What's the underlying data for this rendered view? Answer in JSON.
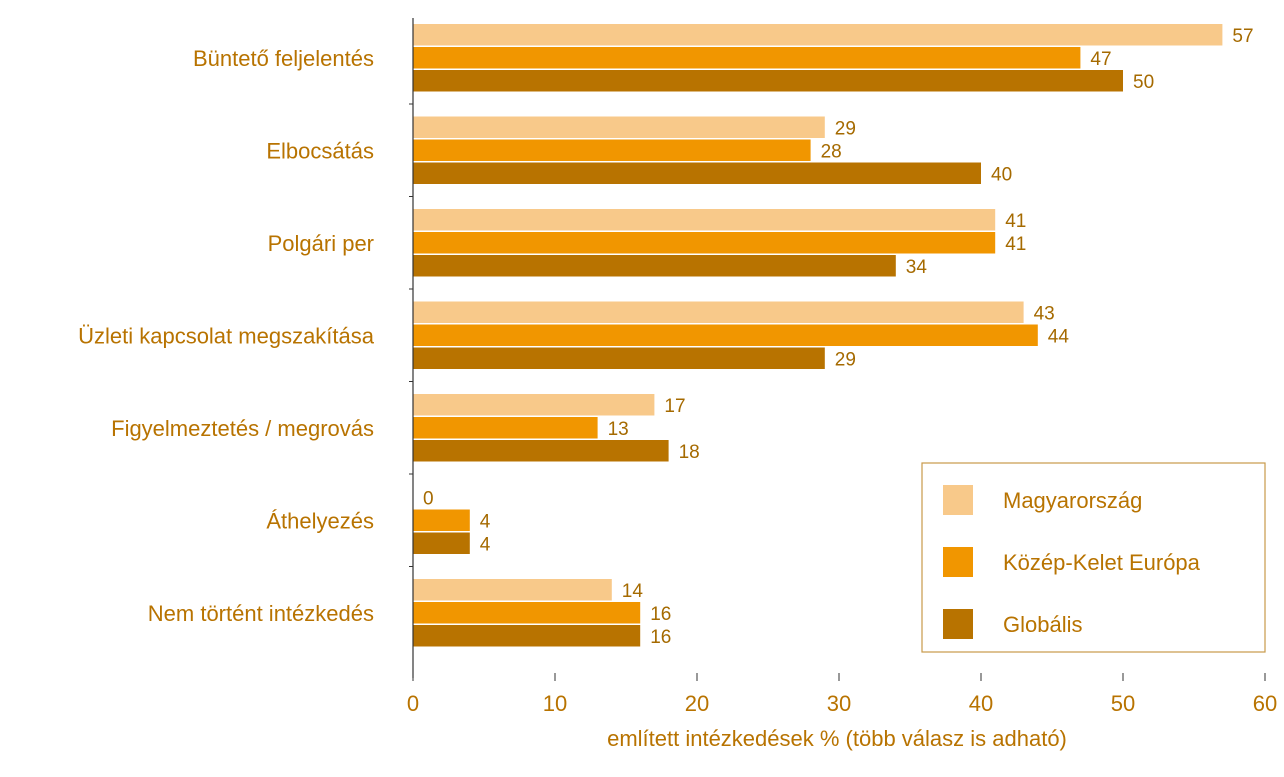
{
  "chart_data": {
    "type": "bar",
    "orientation": "horizontal",
    "categories": [
      "Büntető feljelentés",
      "Elbocsátás",
      "Polgári per",
      "Üzleti kapcsolat megszakítása",
      "Figyelmeztetés / megrovás",
      "Áthelyezés",
      "Nem történt intézkedés"
    ],
    "series": [
      {
        "name": "Magyarország",
        "color": "#f8c98a",
        "values": [
          57,
          29,
          41,
          43,
          17,
          0,
          14
        ]
      },
      {
        "name": "Közép-Kelet Európa",
        "color": "#f19600",
        "values": [
          47,
          28,
          41,
          44,
          13,
          4,
          16
        ]
      },
      {
        "name": "Globális",
        "color": "#b87300",
        "values": [
          50,
          40,
          34,
          29,
          18,
          4,
          16
        ]
      }
    ],
    "value_labels": [
      [
        "57",
        "29",
        "41",
        "43",
        "17",
        "0",
        "14"
      ],
      [
        "47",
        "28",
        "41",
        "44",
        "13",
        "4",
        "16"
      ],
      [
        "50",
        "40",
        "34",
        "29",
        "18",
        "4",
        "16"
      ]
    ],
    "xlim": [
      0,
      60
    ],
    "xticks": [
      0,
      10,
      20,
      30,
      40,
      50,
      60
    ],
    "xtick_labels": [
      "0",
      "10",
      "20",
      "30",
      "40",
      "50",
      "60"
    ],
    "xlabel": "említett intézkedések % (több válasz is adható)",
    "ylabel": "",
    "title": "",
    "grid": false,
    "legend_position": "bottom-right",
    "text_color": "#b87300",
    "axis_color": "#333333"
  }
}
